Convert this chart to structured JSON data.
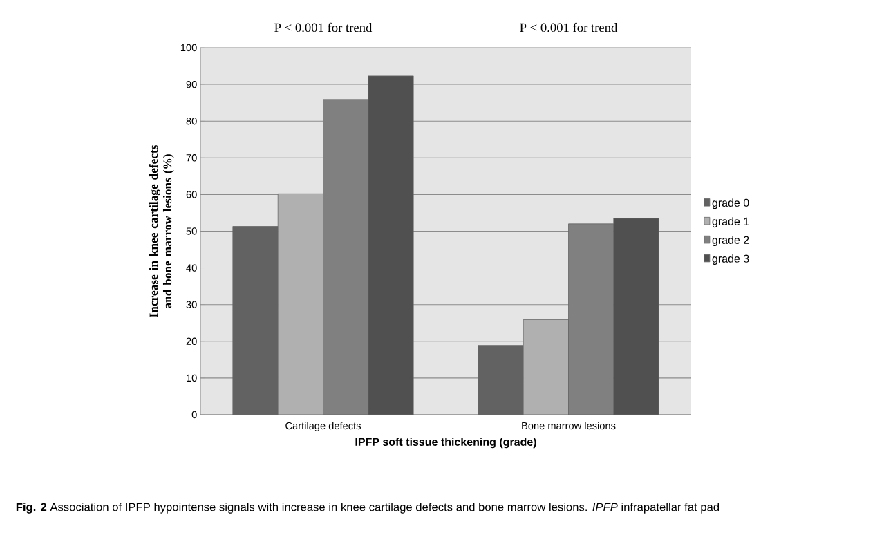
{
  "chart_data": {
    "type": "bar",
    "categories": [
      "Cartilage defects",
      "Bone marrow lesions"
    ],
    "series": [
      {
        "name": "grade 0",
        "color": "#626262",
        "values": [
          51.3,
          18.9
        ]
      },
      {
        "name": "grade 1",
        "color": "#b0b0b0",
        "values": [
          60.2,
          25.9
        ]
      },
      {
        "name": "grade 2",
        "color": "#808080",
        "values": [
          85.9,
          52.0
        ]
      },
      {
        "name": "grade 3",
        "color": "#505050",
        "values": [
          92.3,
          53.5
        ]
      }
    ],
    "xlabel": "IPFP soft tissue thickening (grade)",
    "ylabel": "Increase in knee cartilage defects and bone marrow lesions (%)",
    "ylim": [
      0,
      100
    ],
    "yticks": [
      0,
      10,
      20,
      30,
      40,
      50,
      60,
      70,
      80,
      90,
      100
    ],
    "grid": "y",
    "legend": "right",
    "annotations": [
      "P < 0.001 for trend",
      "P < 0.001 for trend",
      "**Fig. 2** Association of IPFP hypointense signals with increase in knee cartilage defects and bone marrow lesions. *IPFP* infrapatellar fat pad"
    ]
  }
}
